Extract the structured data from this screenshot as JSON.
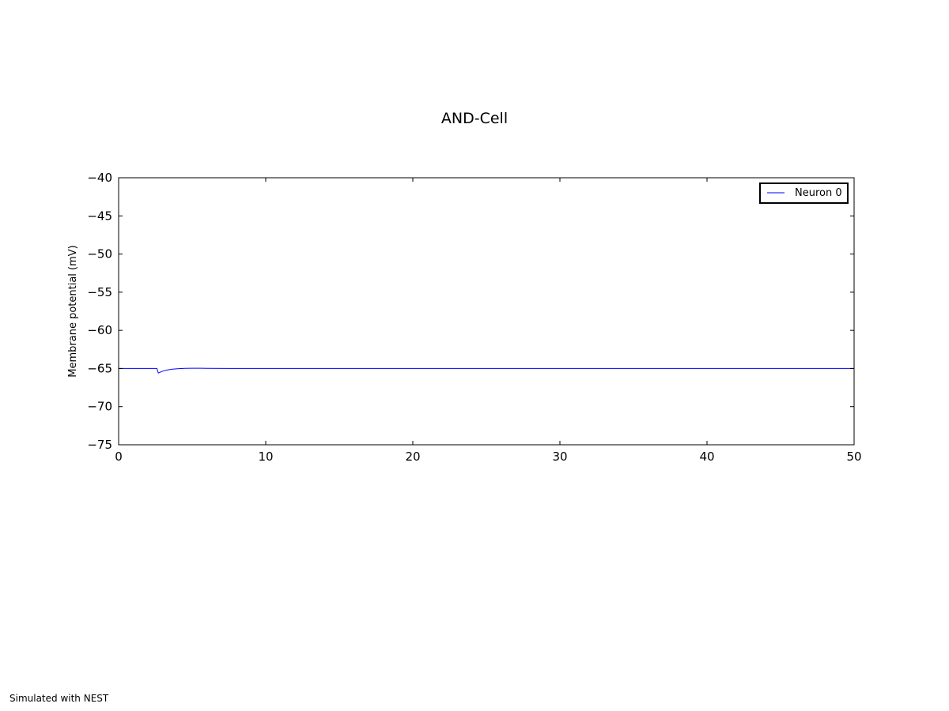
{
  "footer": {
    "credit": "Simulated with NEST"
  },
  "colors": {
    "series": "#0000ff",
    "axis": "#000000",
    "background": "#ffffff"
  },
  "chart_data": {
    "type": "line",
    "title": "AND-Cell",
    "xlabel": "",
    "ylabel": "Membrane potential (mV)",
    "xlim": [
      0,
      50
    ],
    "ylim": [
      -75,
      -40
    ],
    "xticks": [
      0,
      10,
      20,
      30,
      40,
      50
    ],
    "yticks": [
      -40,
      -45,
      -50,
      -55,
      -60,
      -65,
      -70,
      -75
    ],
    "grid": false,
    "legend_position": "top-right",
    "series": [
      {
        "name": "Neuron 0",
        "x": [
          0,
          2.6,
          2.7,
          2.8,
          3.0,
          3.3,
          3.6,
          4.0,
          4.5,
          5.0,
          6.0,
          7.5,
          9.0,
          12,
          20,
          30,
          40,
          50
        ],
        "y": [
          -65,
          -65,
          -65.6,
          -65.5,
          -65.35,
          -65.2,
          -65.1,
          -65.03,
          -64.98,
          -64.97,
          -64.98,
          -65.0,
          -65.0,
          -65.0,
          -65.0,
          -65.0,
          -65.0,
          -65.0
        ]
      }
    ]
  }
}
